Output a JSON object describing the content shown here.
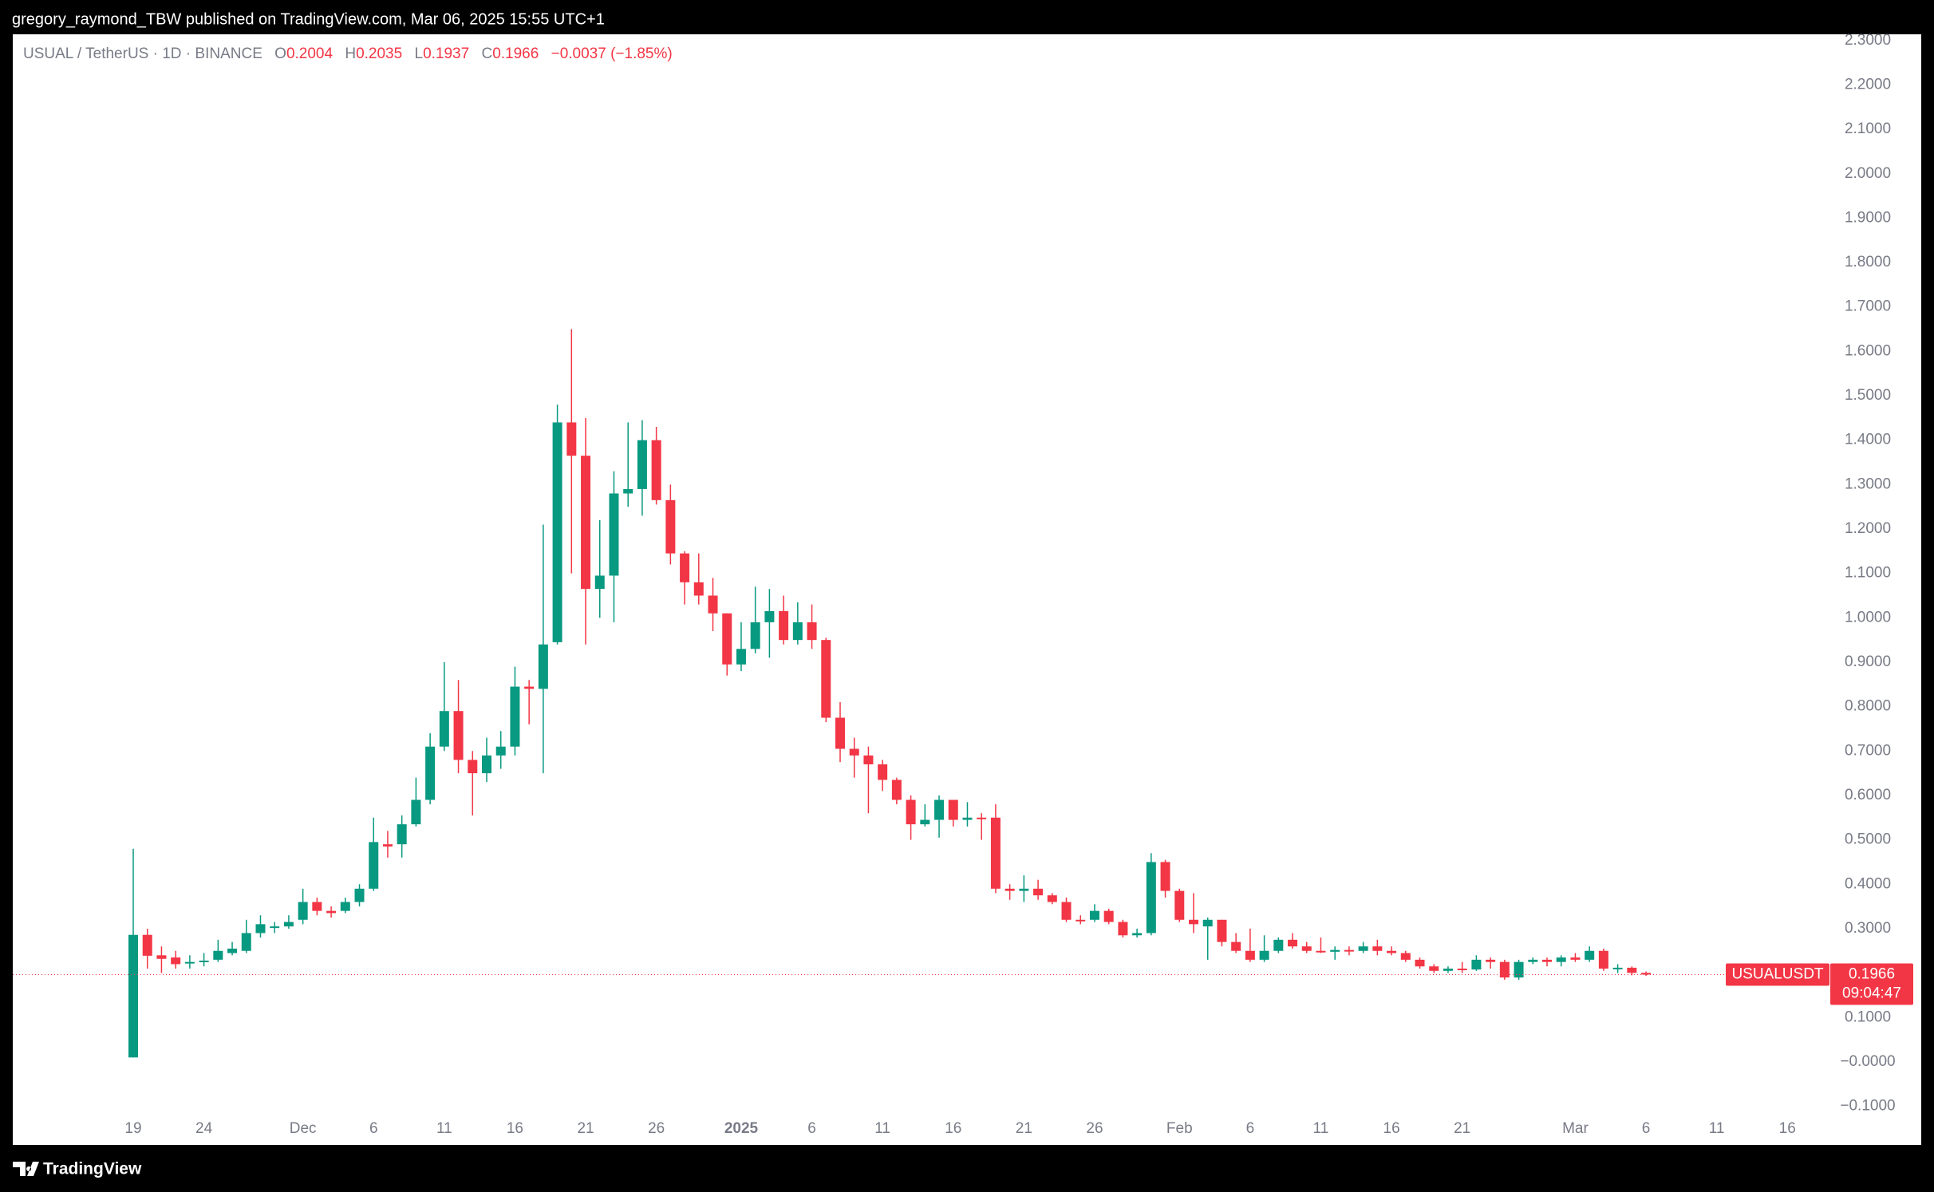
{
  "header": {
    "published": "gregory_raymond_TBW published on TradingView.com, Mar 06, 2025 15:55 UTC+1"
  },
  "chart_data": {
    "type": "candlestick",
    "title": "USUAL / TetherUS · 1D · BINANCE",
    "legend_labels": {
      "open": "O",
      "high": "H",
      "low": "L",
      "close": "C"
    },
    "change_label": "−0.0037 (−1.85%)",
    "symbol": "USUALUSDT",
    "countdown": "09:04:47",
    "up_color": "#089981",
    "down_color": "#f23645",
    "categories": [
      "19",
      null,
      null,
      null,
      null,
      "24",
      null,
      null,
      null,
      null,
      null,
      null,
      "Dec",
      null,
      null,
      null,
      null,
      "6",
      null,
      null,
      null,
      null,
      "11",
      null,
      null,
      null,
      null,
      "16",
      null,
      null,
      null,
      null,
      "21",
      null,
      null,
      null,
      null,
      "26",
      null,
      null,
      null,
      null,
      null,
      "2025",
      null,
      null,
      null,
      null,
      "6",
      null,
      null,
      null,
      null,
      "11",
      null,
      null,
      null,
      null,
      "16",
      null,
      null,
      null,
      null,
      "21",
      null,
      null,
      null,
      null,
      "26",
      null,
      null,
      null,
      null,
      null,
      "Feb",
      null,
      null,
      null,
      null,
      "6",
      null,
      null,
      null,
      null,
      "11",
      null,
      null,
      null,
      null,
      "16",
      null,
      null,
      null,
      null,
      "21",
      null,
      null,
      null,
      null,
      null,
      null,
      null,
      "Mar",
      null,
      null,
      null,
      null,
      "6",
      null,
      null,
      null,
      null,
      "11",
      null,
      null,
      null,
      null,
      "16",
      null,
      null,
      null
    ],
    "open": [
      0.01,
      0.286,
      0.24,
      0.235,
      0.222,
      0.225,
      0.23,
      0.245,
      0.25,
      0.29,
      0.305,
      0.305,
      0.32,
      0.36,
      0.34,
      0.34,
      0.36,
      0.39,
      0.49,
      0.49,
      0.535,
      0.59,
      0.71,
      0.79,
      0.68,
      0.65,
      0.69,
      0.71,
      0.845,
      0.84,
      0.945,
      1.44,
      1.365,
      1.065,
      1.095,
      1.28,
      1.29,
      1.4,
      1.265,
      1.145,
      1.08,
      1.05,
      1.01,
      0.895,
      0.93,
      0.99,
      1.015,
      0.95,
      0.99,
      0.95,
      0.775,
      0.705,
      0.69,
      0.67,
      0.635,
      0.59,
      0.535,
      0.545,
      0.59,
      0.545,
      0.55,
      0.55,
      0.39,
      0.385,
      0.39,
      0.375,
      0.36,
      0.32,
      0.32,
      0.34,
      0.315,
      0.285,
      0.29,
      0.45,
      0.385,
      0.32,
      0.305,
      0.32,
      0.27,
      0.25,
      0.23,
      0.25,
      0.275,
      0.26,
      0.25,
      0.248,
      0.252,
      0.25,
      0.26,
      0.25,
      0.245,
      0.23,
      0.215,
      0.205,
      0.21,
      0.208,
      0.23,
      0.225,
      0.19,
      0.225,
      0.23,
      0.225,
      0.235,
      0.23,
      0.25,
      0.21,
      0.212,
      0.2004,
      null,
      null,
      null,
      null,
      null,
      null,
      null,
      null,
      null,
      null,
      null,
      null,
      null
    ],
    "high": [
      0.48,
      0.3,
      0.26,
      0.25,
      0.24,
      0.245,
      0.275,
      0.27,
      0.32,
      0.33,
      0.315,
      0.33,
      0.39,
      0.37,
      0.35,
      0.37,
      0.4,
      0.55,
      0.52,
      0.555,
      0.64,
      0.74,
      0.9,
      0.86,
      0.7,
      0.73,
      0.745,
      0.89,
      0.86,
      1.21,
      1.48,
      1.65,
      1.45,
      1.22,
      1.33,
      1.44,
      1.445,
      1.43,
      1.3,
      1.15,
      1.145,
      1.09,
      1.01,
      0.99,
      1.07,
      1.065,
      1.05,
      1.035,
      1.03,
      0.955,
      0.81,
      0.73,
      0.71,
      0.68,
      0.64,
      0.6,
      0.58,
      0.6,
      0.59,
      0.585,
      0.56,
      0.58,
      0.4,
      0.42,
      0.41,
      0.38,
      0.37,
      0.33,
      0.355,
      0.345,
      0.32,
      0.3,
      0.47,
      0.455,
      0.39,
      0.38,
      0.325,
      0.32,
      0.29,
      0.3,
      0.285,
      0.28,
      0.29,
      0.27,
      0.28,
      0.26,
      0.26,
      0.27,
      0.275,
      0.26,
      0.25,
      0.235,
      0.22,
      0.215,
      0.225,
      0.24,
      0.235,
      0.23,
      0.23,
      0.235,
      0.235,
      0.24,
      0.245,
      0.26,
      0.255,
      0.22,
      0.215,
      0.2035,
      null,
      null,
      null,
      null,
      null,
      null,
      null,
      null,
      null,
      null,
      null,
      null,
      null
    ],
    "low": [
      0.01,
      0.21,
      0.2,
      0.21,
      0.21,
      0.215,
      0.225,
      0.24,
      0.245,
      0.28,
      0.29,
      0.3,
      0.31,
      0.33,
      0.325,
      0.335,
      0.35,
      0.385,
      0.46,
      0.46,
      0.53,
      0.58,
      0.7,
      0.65,
      0.555,
      0.63,
      0.66,
      0.69,
      0.76,
      0.65,
      0.94,
      1.1,
      0.94,
      1.0,
      0.99,
      1.25,
      1.23,
      1.255,
      1.12,
      1.03,
      1.03,
      0.97,
      0.87,
      0.88,
      0.92,
      0.91,
      0.94,
      0.94,
      0.93,
      0.765,
      0.675,
      0.64,
      0.56,
      0.61,
      0.58,
      0.5,
      0.53,
      0.505,
      0.53,
      0.53,
      0.5,
      0.38,
      0.365,
      0.36,
      0.365,
      0.355,
      0.315,
      0.31,
      0.315,
      0.31,
      0.28,
      0.28,
      0.285,
      0.37,
      0.315,
      0.29,
      0.23,
      0.26,
      0.245,
      0.225,
      0.225,
      0.245,
      0.255,
      0.245,
      0.245,
      0.23,
      0.24,
      0.245,
      0.24,
      0.24,
      0.225,
      0.21,
      0.2,
      0.2,
      0.2,
      0.205,
      0.21,
      0.185,
      0.185,
      0.22,
      0.215,
      0.215,
      0.225,
      0.225,
      0.205,
      0.2,
      0.195,
      0.1937,
      null,
      null,
      null,
      null,
      null,
      null,
      null,
      null,
      null,
      null,
      null,
      null,
      null
    ],
    "close": [
      0.286,
      0.239,
      0.232,
      0.22,
      0.225,
      0.228,
      0.25,
      0.255,
      0.29,
      0.31,
      0.305,
      0.315,
      0.36,
      0.34,
      0.335,
      0.36,
      0.39,
      0.495,
      0.485,
      0.535,
      0.59,
      0.71,
      0.79,
      0.68,
      0.65,
      0.69,
      0.71,
      0.845,
      0.84,
      0.94,
      1.44,
      1.365,
      1.065,
      1.095,
      1.28,
      1.29,
      1.4,
      1.265,
      1.145,
      1.08,
      1.05,
      1.01,
      0.895,
      0.93,
      0.99,
      1.015,
      0.95,
      0.99,
      0.95,
      0.775,
      0.705,
      0.69,
      0.67,
      0.635,
      0.59,
      0.535,
      0.545,
      0.59,
      0.545,
      0.55,
      0.548,
      0.39,
      0.385,
      0.39,
      0.375,
      0.36,
      0.32,
      0.318,
      0.34,
      0.315,
      0.285,
      0.29,
      0.45,
      0.385,
      0.32,
      0.31,
      0.32,
      0.27,
      0.25,
      0.23,
      0.25,
      0.275,
      0.26,
      0.25,
      0.248,
      0.252,
      0.25,
      0.26,
      0.25,
      0.245,
      0.23,
      0.215,
      0.205,
      0.21,
      0.208,
      0.23,
      0.225,
      0.19,
      0.225,
      0.23,
      0.225,
      0.235,
      0.23,
      0.25,
      0.21,
      0.212,
      0.2004,
      0.1966,
      null,
      null,
      null,
      null,
      null,
      null,
      null,
      null,
      null,
      null,
      null,
      null,
      null
    ],
    "ylim": [
      -0.108,
      2.314
    ],
    "yticks": [
      {
        "value": -0.1,
        "label": "−0.1000"
      },
      {
        "value": 0,
        "label": "−0.0000"
      },
      {
        "value": 0.1,
        "label": "0.1000"
      },
      {
        "value": 0.3,
        "label": "0.3000"
      },
      {
        "value": 0.4,
        "label": "0.4000"
      },
      {
        "value": 0.5,
        "label": "0.5000"
      },
      {
        "value": 0.6,
        "label": "0.6000"
      },
      {
        "value": 0.7,
        "label": "0.7000"
      },
      {
        "value": 0.8,
        "label": "0.8000"
      },
      {
        "value": 0.9,
        "label": "0.9000"
      },
      {
        "value": 1,
        "label": "1.0000"
      },
      {
        "value": 1.1,
        "label": "1.1000"
      },
      {
        "value": 1.2,
        "label": "1.2000"
      },
      {
        "value": 1.3,
        "label": "1.3000"
      },
      {
        "value": 1.4,
        "label": "1.4000"
      },
      {
        "value": 1.5,
        "label": "1.5000"
      },
      {
        "value": 1.6,
        "label": "1.6000"
      },
      {
        "value": 1.7,
        "label": "1.7000"
      },
      {
        "value": 1.8,
        "label": "1.8000"
      },
      {
        "value": 1.9,
        "label": "1.9000"
      },
      {
        "value": 2,
        "label": "2.0000"
      },
      {
        "value": 2.1,
        "label": "2.1000"
      },
      {
        "value": 2.2,
        "label": "2.2000"
      },
      {
        "value": 2.3,
        "label": "2.3000"
      }
    ],
    "grid": false
  },
  "footer": {
    "brand": "TradingView"
  }
}
